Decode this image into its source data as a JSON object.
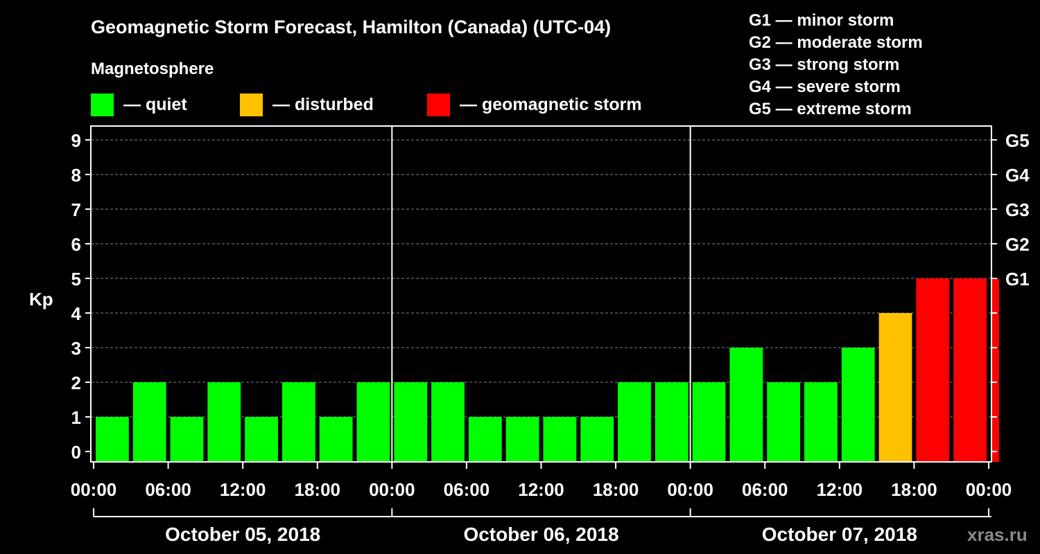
{
  "title": "Geomagnetic Storm Forecast, Hamilton (Canada) (UTC-04)",
  "magnetosphere": {
    "heading": "Magnetosphere",
    "items": [
      {
        "label": "— quiet",
        "color": "#00ff00"
      },
      {
        "label": "— disturbed",
        "color": "#ffc000"
      },
      {
        "label": "— geomagnetic storm",
        "color": "#ff0000"
      }
    ]
  },
  "g_scale": [
    "G1 — minor storm",
    "G2 — moderate storm",
    "G3 — strong storm",
    "G4 — severe storm",
    "G5 — extreme storm"
  ],
  "watermark": "xras.ru",
  "chart_data": {
    "type": "bar",
    "ylabel": "Kp",
    "ylim": [
      0,
      9
    ],
    "y_ticks": [
      0,
      1,
      2,
      3,
      4,
      5,
      6,
      7,
      8,
      9
    ],
    "right_ticks": [
      {
        "kp": 5,
        "label": "G1"
      },
      {
        "kp": 6,
        "label": "G2"
      },
      {
        "kp": 7,
        "label": "G3"
      },
      {
        "kp": 8,
        "label": "G4"
      },
      {
        "kp": 9,
        "label": "G5"
      }
    ],
    "grid": true,
    "x_tick_labels": [
      "00:00",
      "06:00",
      "12:00",
      "18:00",
      "00:00",
      "06:00",
      "12:00",
      "18:00",
      "00:00",
      "06:00",
      "12:00",
      "18:00",
      "00:00"
    ],
    "days": [
      "October 05, 2018",
      "October 06, 2018",
      "October 07, 2018"
    ],
    "interval_hours": 3,
    "values": [
      1,
      2,
      1,
      2,
      1,
      2,
      1,
      2,
      2,
      2,
      1,
      1,
      1,
      1,
      2,
      2,
      2,
      3,
      2,
      2,
      3,
      4,
      5,
      5,
      5
    ],
    "last_bar_partial_hours": 1,
    "status_colors": {
      "quiet": "#00ff00",
      "disturbed": "#ffc000",
      "storm": "#ff0000"
    }
  }
}
